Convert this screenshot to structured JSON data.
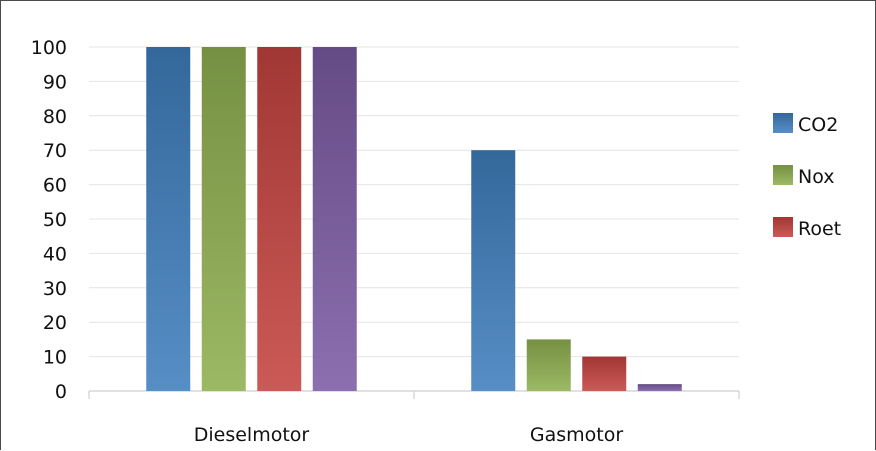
{
  "chart_data": {
    "type": "bar",
    "title": "",
    "xlabel": "",
    "ylabel": "",
    "categories": [
      "Dieselmotor",
      "Gasmotor"
    ],
    "series": [
      {
        "name": "CO2",
        "color": "#3f7fbd",
        "values": [
          100,
          70
        ]
      },
      {
        "name": "Nox",
        "color": "#8fb050",
        "values": [
          100,
          15
        ]
      },
      {
        "name": "Roet",
        "color": "#c4433f",
        "values": [
          100,
          10
        ]
      },
      {
        "color": "#7b5ba4",
        "values": [
          100,
          2
        ]
      }
    ],
    "ylim": [
      0,
      100
    ],
    "yticks": [
      "0",
      "10",
      "20",
      "30",
      "40",
      "50",
      "60",
      "70",
      "80",
      "90",
      "100"
    ],
    "grid": true,
    "legend": "right"
  }
}
